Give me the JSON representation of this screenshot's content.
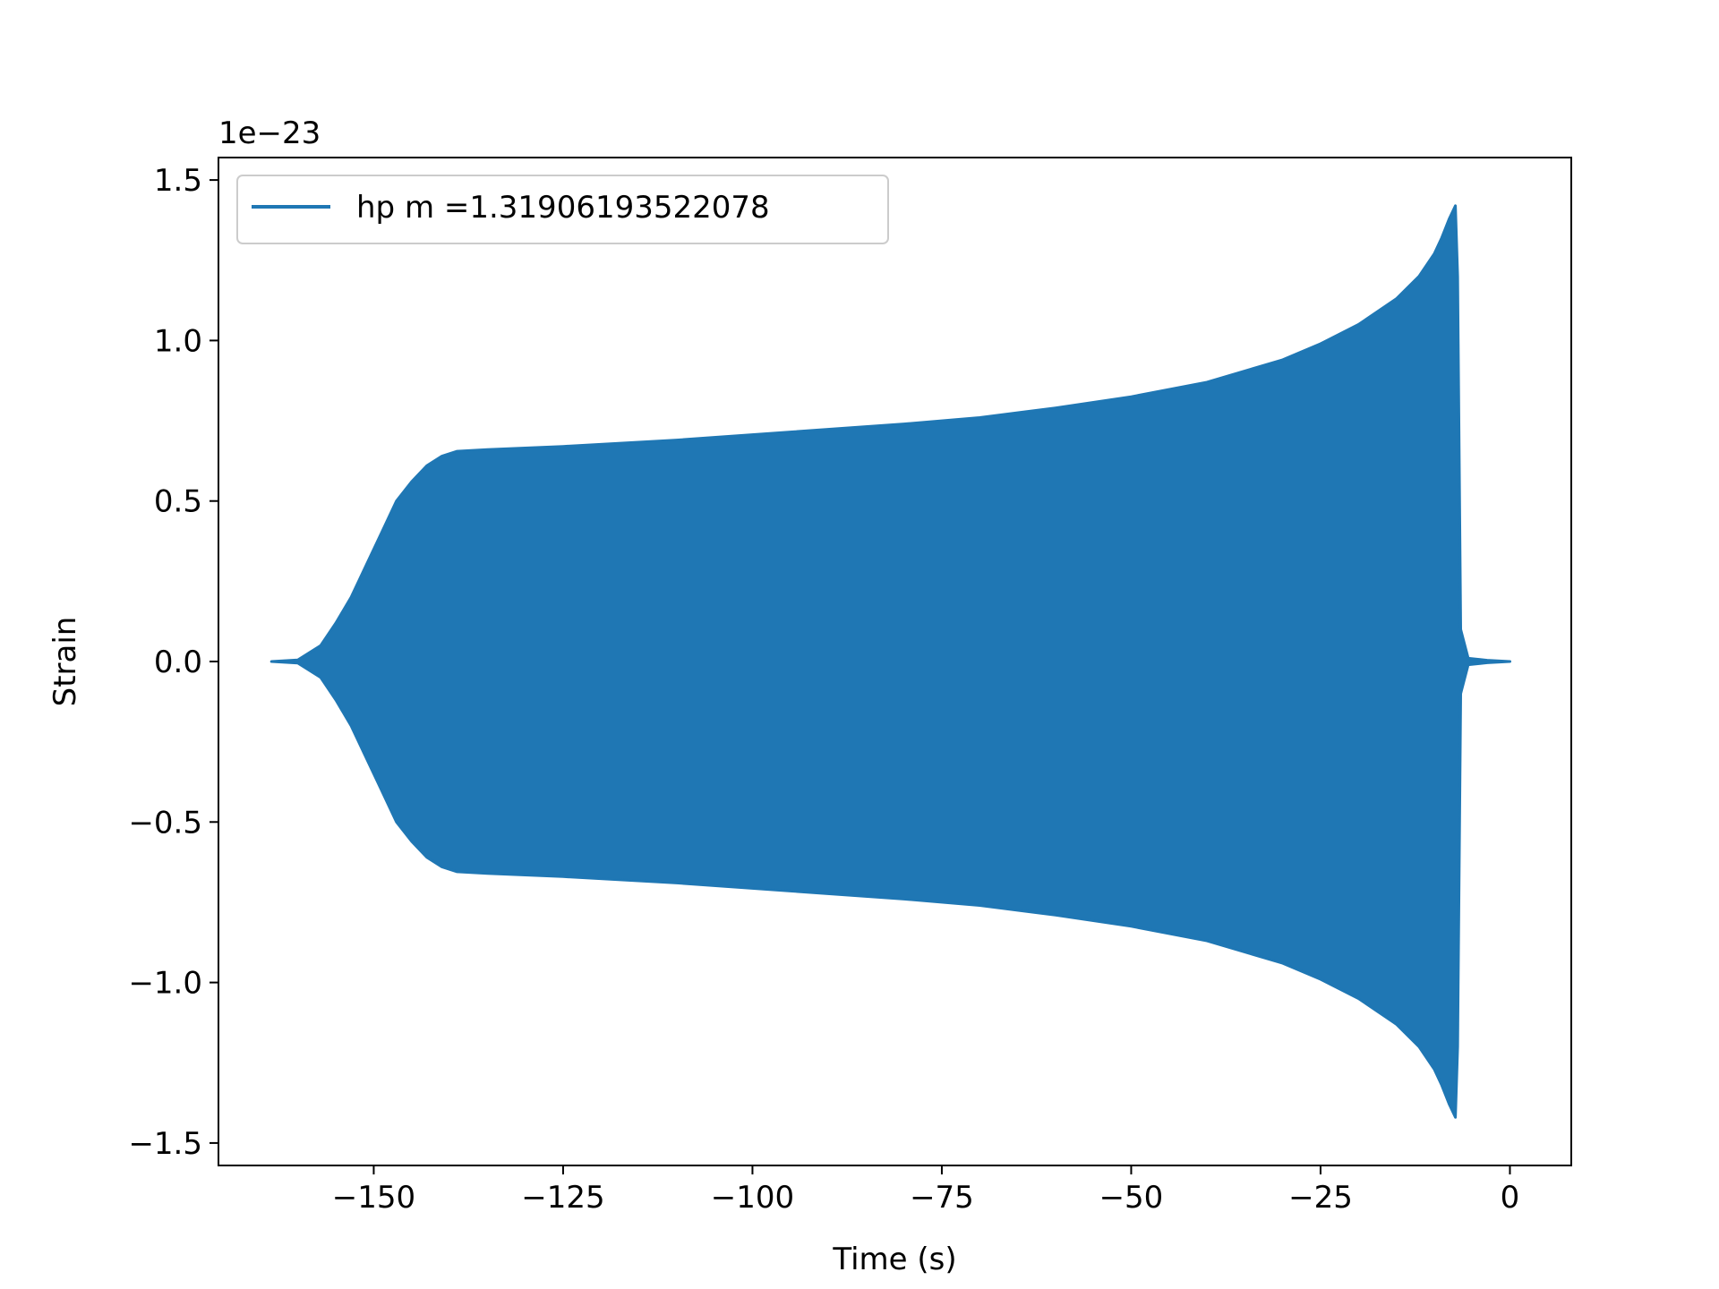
{
  "chart_data": {
    "type": "line",
    "title": "",
    "xlabel": "Time (s)",
    "ylabel": "Strain",
    "offset_text": "1e−23",
    "xlim": [
      -170.5,
      8.1
    ],
    "ylim": [
      -1.57,
      1.57
    ],
    "y_scale_exponent": -23,
    "xticks": [
      -150,
      -125,
      -100,
      -75,
      -50,
      -25,
      0
    ],
    "xtick_labels": [
      "−150",
      "−125",
      "−100",
      "−75",
      "−50",
      "−25",
      "0"
    ],
    "yticks": [
      -1.5,
      -1.0,
      -0.5,
      0.0,
      0.5,
      1.0,
      1.5
    ],
    "ytick_labels": [
      "−1.5",
      "−1.0",
      "−0.5",
      "0.0",
      "0.5",
      "1.0",
      "1.5"
    ],
    "grid": false,
    "legend_position": "upper-left",
    "series": [
      {
        "name": "hp m =1.31906193522078",
        "color": "#1f77b4",
        "envelope_upper": {
          "x": [
            -163.5,
            -160,
            -157,
            -155,
            -153,
            -151,
            -149,
            -147,
            -145,
            -143,
            -141,
            -139,
            -135,
            -125,
            -110,
            -95,
            -80,
            -70,
            -60,
            -50,
            -40,
            -30,
            -25,
            -20,
            -15,
            -12,
            -10,
            -9,
            -8,
            -7.2,
            -6.9,
            -6.5,
            -5.5,
            -3,
            0
          ],
          "y": [
            0.0,
            0.005,
            0.05,
            0.12,
            0.2,
            0.3,
            0.4,
            0.5,
            0.56,
            0.61,
            0.64,
            0.655,
            0.66,
            0.67,
            0.69,
            0.715,
            0.74,
            0.76,
            0.79,
            0.825,
            0.87,
            0.94,
            0.99,
            1.05,
            1.13,
            1.2,
            1.27,
            1.32,
            1.38,
            1.42,
            1.2,
            0.1,
            0.01,
            0.004,
            0.0
          ]
        },
        "envelope_lower": {
          "x": [
            -163.5,
            -160,
            -157,
            -155,
            -153,
            -151,
            -149,
            -147,
            -145,
            -143,
            -141,
            -139,
            -135,
            -125,
            -110,
            -95,
            -80,
            -70,
            -60,
            -50,
            -40,
            -30,
            -25,
            -20,
            -15,
            -12,
            -10,
            -9,
            -8,
            -7.2,
            -6.9,
            -6.5,
            -5.5,
            -3,
            0
          ],
          "y": [
            0.0,
            -0.005,
            -0.05,
            -0.12,
            -0.2,
            -0.3,
            -0.4,
            -0.5,
            -0.56,
            -0.61,
            -0.64,
            -0.655,
            -0.66,
            -0.67,
            -0.69,
            -0.715,
            -0.74,
            -0.76,
            -0.79,
            -0.825,
            -0.87,
            -0.94,
            -0.99,
            -1.05,
            -1.13,
            -1.2,
            -1.27,
            -1.32,
            -1.38,
            -1.42,
            -1.2,
            -0.1,
            -0.01,
            -0.004,
            0.0
          ]
        }
      }
    ]
  }
}
